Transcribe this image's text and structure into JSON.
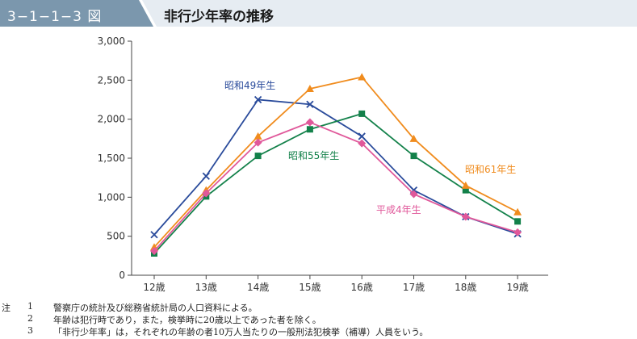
{
  "header": {
    "figure_number": "3−1−1−3 図",
    "title": "非行少年率の推移"
  },
  "colors": {
    "header_tab": "#7b97ad",
    "title_bar": "#e6ecf2",
    "S49": "#2a4b9b",
    "S55": "#13814a",
    "S61": "#f08c1e",
    "H4": "#e0589a"
  },
  "chart_data": {
    "type": "line",
    "title": "",
    "xlabel": "",
    "ylabel": "",
    "categories": [
      "12歳",
      "13歳",
      "14歳",
      "15歳",
      "16歳",
      "17歳",
      "18歳",
      "19歳"
    ],
    "ylim": [
      0,
      3000
    ],
    "yticks": [
      "0",
      "500",
      "1,000",
      "1,500",
      "2,000",
      "2,500",
      "3,000"
    ],
    "grid": false,
    "series": [
      {
        "key": "S49",
        "name": "昭和49年生",
        "marker": "x",
        "values": [
          520,
          1270,
          2250,
          2190,
          1780,
          1090,
          750,
          530
        ]
      },
      {
        "key": "S55",
        "name": "昭和55年生",
        "marker": "square",
        "values": [
          280,
          1010,
          1530,
          1870,
          2070,
          1530,
          1090,
          690
        ]
      },
      {
        "key": "S61",
        "name": "昭和61年生",
        "marker": "triangle",
        "values": [
          360,
          1090,
          1780,
          2390,
          2540,
          1750,
          1150,
          810
        ]
      },
      {
        "key": "H4",
        "name": "平成4年生",
        "marker": "diamond",
        "values": [
          310,
          1050,
          1700,
          1960,
          1690,
          1040,
          750,
          550
        ]
      }
    ]
  },
  "notes": [
    {
      "head": "注",
      "num": "1",
      "text": "警察庁の統計及び総務省統計局の人口資料による。"
    },
    {
      "head": "",
      "num": "2",
      "text": "年齢は犯行時であり，また，検挙時に20歳以上であった者を除く。"
    },
    {
      "head": "",
      "num": "3",
      "text": "「非行少年率」は，それぞれの年齢の者10万人当たりの一般刑法犯検挙（補導）人員をいう。"
    }
  ]
}
